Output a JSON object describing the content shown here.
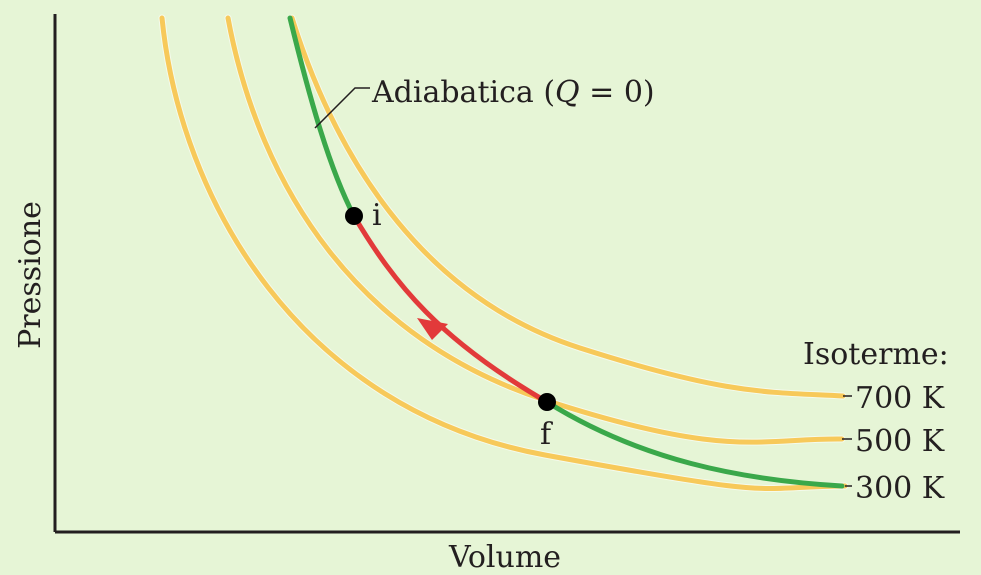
{
  "diagram": {
    "y_axis_label": "Pressione",
    "x_axis_label": "Volume",
    "adiabatic_label": "Adiabatica (",
    "adiabatic_label_q": "Q",
    "adiabatic_label_tail": " = 0)",
    "point_initial": "i",
    "point_final": "f",
    "isotherms_title": "Isoterme:",
    "isotherms": [
      {
        "label": "700 K"
      },
      {
        "label": "500 K"
      },
      {
        "label": "300 K"
      }
    ],
    "colors": {
      "isotherm": "#f7c95a",
      "adiabat": "#3aa84a",
      "process": "#e23a3a",
      "background": "#e6f5d6"
    }
  }
}
